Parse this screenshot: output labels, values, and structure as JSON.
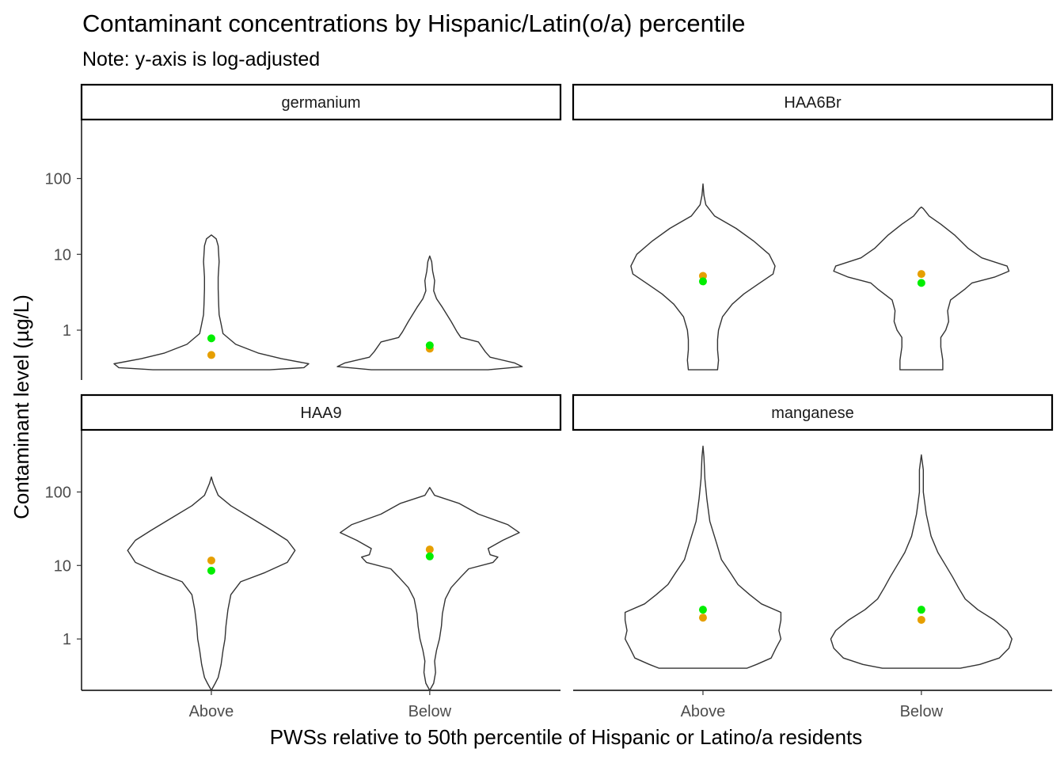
{
  "page": {
    "title": "Contaminant concentrations by Hispanic/Latin(o/a) percentile",
    "subtitle": "Note: y-axis is log-adjusted"
  },
  "chart_data": {
    "type": "violin",
    "title": "Contaminant concentrations by Hispanic/Latin(o/a) percentile",
    "subtitle": "Note: y-axis is log-adjusted",
    "xlabel": "PWSs relative to 50th percentile of Hispanic or Latino/a residents",
    "ylabel": "Contaminant level (µg/L)",
    "y_scale": "log10",
    "categories": [
      "Above",
      "Below"
    ],
    "y_ticks": [
      1,
      10,
      100
    ],
    "y_tick_labels": [
      "1",
      "10",
      "100"
    ],
    "grid": false,
    "legend": "none",
    "colors": {
      "point_a": "#00ee00",
      "point_b": "#e69f00",
      "outline": "#333333"
    },
    "panels": [
      {
        "name": "germanium",
        "ylim": [
          0.22,
          600
        ],
        "groups": [
          {
            "category": "Above",
            "min": 0.3,
            "max": 18,
            "point_a": 0.78,
            "point_b": 0.47,
            "profile": [
              [
                0.3,
                0.6
              ],
              [
                0.32,
                0.95
              ],
              [
                0.36,
                1.0
              ],
              [
                0.42,
                0.72
              ],
              [
                0.5,
                0.48
              ],
              [
                0.65,
                0.25
              ],
              [
                0.9,
                0.12
              ],
              [
                1.2,
                0.1
              ],
              [
                1.6,
                0.08
              ],
              [
                2.2,
                0.075
              ],
              [
                3.5,
                0.07
              ],
              [
                5,
                0.07
              ],
              [
                8,
                0.08
              ],
              [
                13,
                0.07
              ],
              [
                16,
                0.05
              ],
              [
                18,
                0.0
              ]
            ]
          },
          {
            "category": "Below",
            "min": 0.3,
            "max": 9.5,
            "point_a": 0.63,
            "point_b": 0.57,
            "profile": [
              [
                0.3,
                0.6
              ],
              [
                0.33,
                0.95
              ],
              [
                0.37,
                0.87
              ],
              [
                0.44,
                0.62
              ],
              [
                0.52,
                0.57
              ],
              [
                0.7,
                0.5
              ],
              [
                0.8,
                0.32
              ],
              [
                0.95,
                0.28
              ],
              [
                1.3,
                0.22
              ],
              [
                2,
                0.13
              ],
              [
                2.6,
                0.07
              ],
              [
                3.3,
                0.04
              ],
              [
                4.5,
                0.05
              ],
              [
                6,
                0.03
              ],
              [
                8,
                0.02
              ],
              [
                9.5,
                0.0
              ]
            ]
          }
        ]
      },
      {
        "name": "HAA6Br",
        "ylim": [
          0.22,
          600
        ],
        "groups": [
          {
            "category": "Above",
            "min": 0.3,
            "max": 85,
            "point_a": 4.4,
            "point_b": 5.2,
            "profile": [
              [
                0.3,
                0.15
              ],
              [
                0.4,
                0.16
              ],
              [
                0.55,
                0.15
              ],
              [
                0.75,
                0.15
              ],
              [
                1.0,
                0.16
              ],
              [
                1.5,
                0.2
              ],
              [
                2.2,
                0.3
              ],
              [
                3,
                0.42
              ],
              [
                4,
                0.56
              ],
              [
                5.5,
                0.72
              ],
              [
                7,
                0.74
              ],
              [
                10,
                0.68
              ],
              [
                15,
                0.52
              ],
              [
                22,
                0.34
              ],
              [
                32,
                0.12
              ],
              [
                45,
                0.03
              ],
              [
                60,
                0.01
              ],
              [
                85,
                0.0
              ]
            ]
          },
          {
            "category": "Below",
            "min": 0.3,
            "max": 42,
            "point_a": 4.2,
            "point_b": 5.5,
            "profile": [
              [
                0.3,
                0.22
              ],
              [
                0.4,
                0.22
              ],
              [
                0.6,
                0.2
              ],
              [
                0.8,
                0.2
              ],
              [
                1.0,
                0.25
              ],
              [
                1.3,
                0.28
              ],
              [
                1.8,
                0.27
              ],
              [
                2.5,
                0.3
              ],
              [
                3.5,
                0.45
              ],
              [
                4.2,
                0.52
              ],
              [
                5,
                0.75
              ],
              [
                6,
                0.9
              ],
              [
                7,
                0.88
              ],
              [
                9,
                0.62
              ],
              [
                12,
                0.48
              ],
              [
                18,
                0.34
              ],
              [
                25,
                0.2
              ],
              [
                32,
                0.08
              ],
              [
                40,
                0.02
              ],
              [
                42,
                0.0
              ]
            ]
          }
        ]
      },
      {
        "name": "HAA9",
        "ylim": [
          0.2,
          700
        ],
        "groups": [
          {
            "category": "Above",
            "min": 0.2,
            "max": 160,
            "point_a": 8.5,
            "point_b": 11.7,
            "profile": [
              [
                0.2,
                0.0
              ],
              [
                0.25,
                0.04
              ],
              [
                0.3,
                0.07
              ],
              [
                0.45,
                0.1
              ],
              [
                0.7,
                0.12
              ],
              [
                1,
                0.14
              ],
              [
                1.5,
                0.15
              ],
              [
                2.5,
                0.17
              ],
              [
                4,
                0.2
              ],
              [
                6,
                0.3
              ],
              [
                8,
                0.55
              ],
              [
                11,
                0.78
              ],
              [
                16,
                0.86
              ],
              [
                22,
                0.78
              ],
              [
                30,
                0.62
              ],
              [
                45,
                0.4
              ],
              [
                65,
                0.2
              ],
              [
                90,
                0.07
              ],
              [
                130,
                0.02
              ],
              [
                160,
                0.0
              ]
            ]
          },
          {
            "category": "Below",
            "min": 0.2,
            "max": 115,
            "point_a": 13.3,
            "point_b": 16.5,
            "profile": [
              [
                0.2,
                0.0
              ],
              [
                0.25,
                0.04
              ],
              [
                0.35,
                0.06
              ],
              [
                0.5,
                0.05
              ],
              [
                0.7,
                0.07
              ],
              [
                1,
                0.1
              ],
              [
                1.5,
                0.12
              ],
              [
                2.2,
                0.13
              ],
              [
                3.5,
                0.16
              ],
              [
                5,
                0.22
              ],
              [
                7,
                0.32
              ],
              [
                9,
                0.4
              ],
              [
                11,
                0.65
              ],
              [
                13,
                0.7
              ],
              [
                14,
                0.62
              ],
              [
                17,
                0.6
              ],
              [
                22,
                0.75
              ],
              [
                28,
                0.92
              ],
              [
                36,
                0.8
              ],
              [
                50,
                0.5
              ],
              [
                70,
                0.3
              ],
              [
                90,
                0.05
              ],
              [
                115,
                0.0
              ]
            ]
          }
        ]
      },
      {
        "name": "manganese",
        "ylim": [
          0.2,
          700
        ],
        "groups": [
          {
            "category": "Above",
            "min": 0.4,
            "max": 420,
            "point_a": 2.5,
            "point_b": 1.95,
            "profile": [
              [
                0.4,
                0.45
              ],
              [
                0.45,
                0.55
              ],
              [
                0.55,
                0.7
              ],
              [
                0.75,
                0.75
              ],
              [
                1.0,
                0.8
              ],
              [
                1.3,
                0.78
              ],
              [
                1.8,
                0.8
              ],
              [
                2.3,
                0.8
              ],
              [
                3,
                0.6
              ],
              [
                4,
                0.48
              ],
              [
                5.5,
                0.36
              ],
              [
                8,
                0.28
              ],
              [
                12,
                0.19
              ],
              [
                20,
                0.14
              ],
              [
                40,
                0.07
              ],
              [
                80,
                0.04
              ],
              [
                150,
                0.02
              ],
              [
                300,
                0.01
              ],
              [
                420,
                0.0
              ]
            ]
          },
          {
            "category": "Below",
            "min": 0.4,
            "max": 320,
            "point_a": 2.5,
            "point_b": 1.82,
            "profile": [
              [
                0.4,
                0.4
              ],
              [
                0.45,
                0.6
              ],
              [
                0.55,
                0.8
              ],
              [
                0.75,
                0.9
              ],
              [
                1.0,
                0.93
              ],
              [
                1.3,
                0.88
              ],
              [
                1.8,
                0.75
              ],
              [
                2.5,
                0.58
              ],
              [
                3.5,
                0.45
              ],
              [
                5,
                0.38
              ],
              [
                7,
                0.32
              ],
              [
                10,
                0.25
              ],
              [
                15,
                0.17
              ],
              [
                25,
                0.1
              ],
              [
                50,
                0.05
              ],
              [
                100,
                0.02
              ],
              [
                200,
                0.02
              ],
              [
                320,
                0.0
              ]
            ]
          }
        ]
      }
    ]
  }
}
